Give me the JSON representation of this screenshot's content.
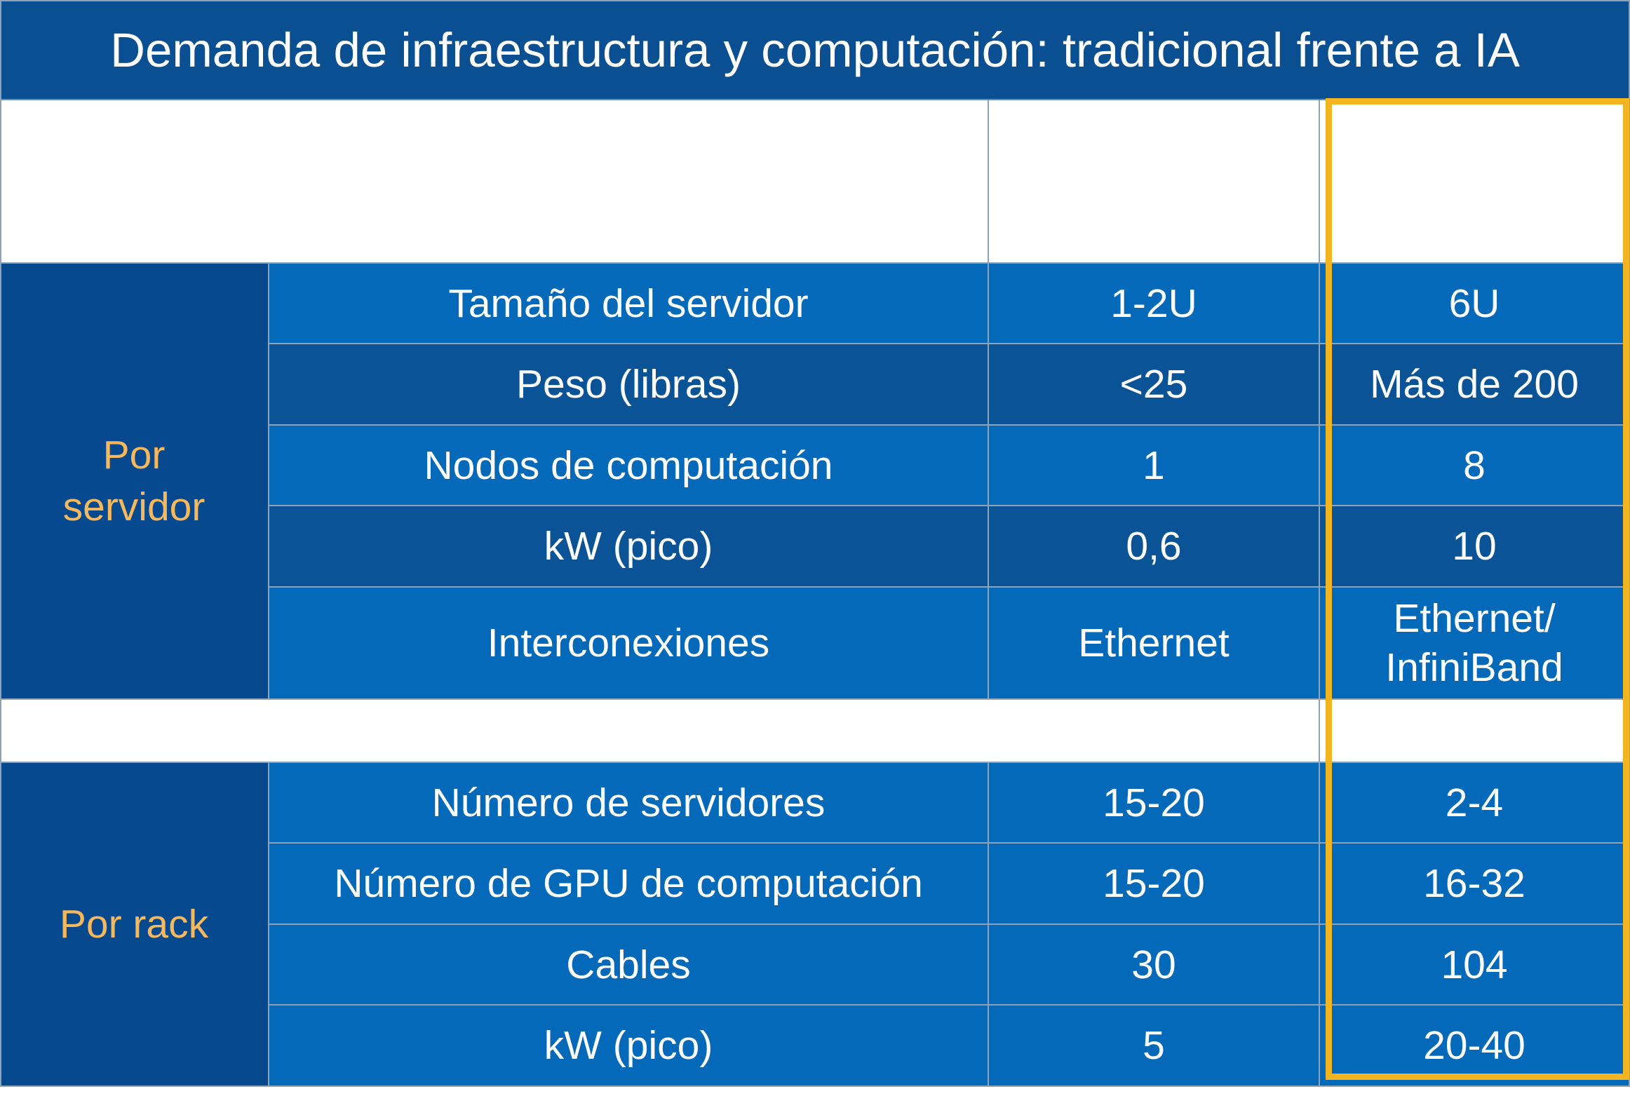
{
  "title": "Demanda de infraestructura y computación: tradicional frente a IA",
  "groups": {
    "server": {
      "label": "Por\nservidor",
      "rows": [
        {
          "metric": "Tamaño del servidor",
          "traditional": "1-2U",
          "ai": "6U"
        },
        {
          "metric": "Peso (libras)",
          "traditional": "<25",
          "ai": "Más de 200"
        },
        {
          "metric": "Nodos de computación",
          "traditional": "1",
          "ai": "8"
        },
        {
          "metric": "kW (pico)",
          "traditional": "0,6",
          "ai": "10"
        },
        {
          "metric": "Interconexiones",
          "traditional": "Ethernet",
          "ai": "Ethernet/\nInfiniBand"
        }
      ]
    },
    "rack": {
      "label": "Por rack",
      "rows": [
        {
          "metric": "Número de servidores",
          "traditional": "15-20",
          "ai": "2-4"
        },
        {
          "metric": "Número de GPU de computación",
          "traditional": "15-20",
          "ai": "16-32"
        },
        {
          "metric": "Cables",
          "traditional": "30",
          "ai": "104"
        },
        {
          "metric": "kW (pico)",
          "traditional": "5",
          "ai": "20-40"
        }
      ]
    }
  },
  "colors": {
    "title_bg": "#0a4f92",
    "row_light": "#0569b9",
    "row_dark": "#0a5396",
    "group_bg": "#07498f",
    "group_text": "#f5b85c",
    "highlight": "#f2b51f"
  }
}
